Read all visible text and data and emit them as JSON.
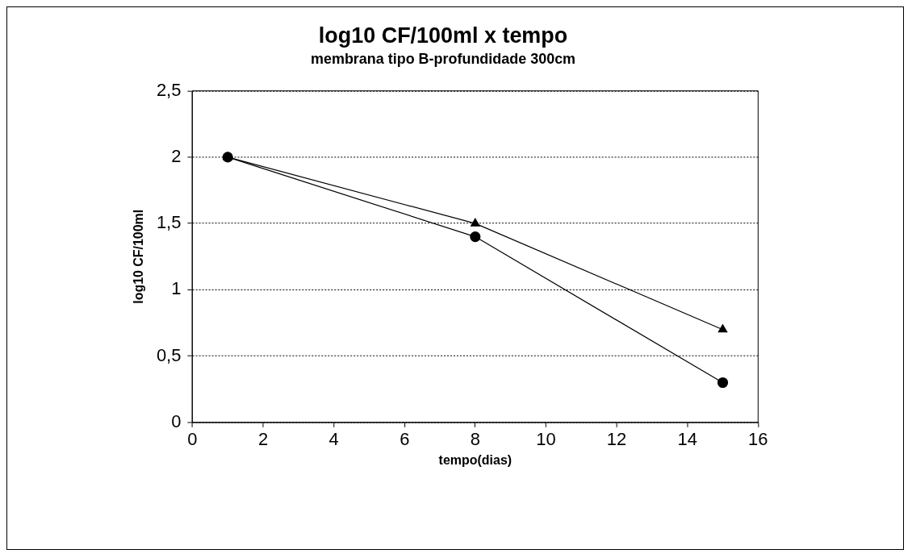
{
  "chart_data": {
    "type": "line",
    "title": "log10 CF/100ml x tempo",
    "subtitle": "membrana tipo B-profundidade 300cm",
    "xlabel": "tempo(dias)",
    "ylabel": "log10 CF/100ml",
    "x": [
      1,
      8,
      15
    ],
    "series": [
      {
        "type": "line",
        "color": "#000000",
        "marker": "triangle",
        "values": [
          2.0,
          1.5,
          0.7
        ]
      },
      {
        "type": "line",
        "color": "#000000",
        "marker": "circle",
        "values": [
          2.0,
          1.4,
          0.3
        ]
      }
    ],
    "xlim": [
      0,
      16
    ],
    "xticks": [
      0,
      2,
      4,
      6,
      8,
      10,
      12,
      14,
      16
    ],
    "ylim": [
      0,
      2.5
    ],
    "yticks": [
      0,
      {
        "value": 0.5,
        "label": "0,5"
      },
      1,
      {
        "value": 1.5,
        "label": "1,5"
      },
      2,
      {
        "value": 2.5,
        "label": "2,5"
      }
    ],
    "grid": "y",
    "legend": false,
    "line_style": "solid"
  }
}
